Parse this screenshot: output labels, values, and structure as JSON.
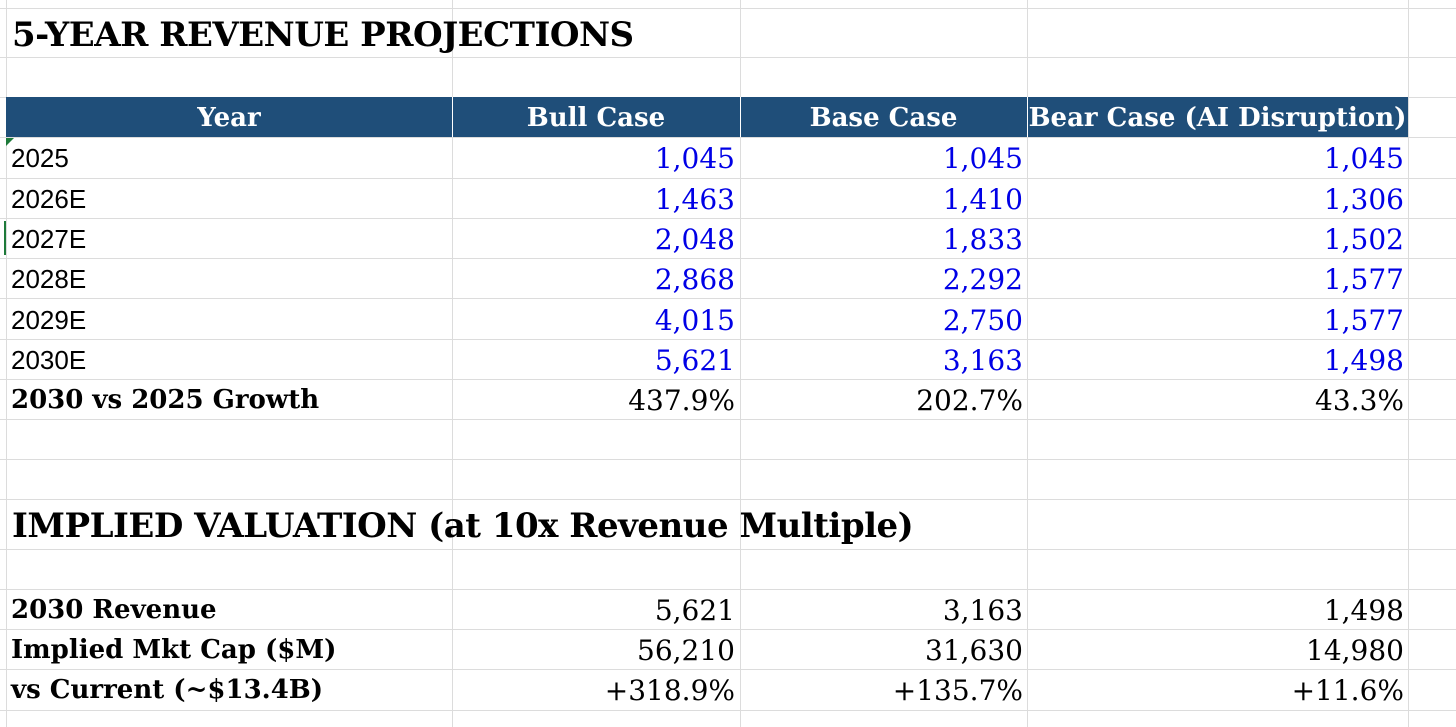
{
  "projections": {
    "title": "5-YEAR REVENUE PROJECTIONS",
    "headers": [
      "Year",
      "Bull Case",
      "Base Case",
      "Bear Case (AI Disruption)"
    ],
    "rows": [
      {
        "year": "2025",
        "bull": "1,045",
        "base": "1,045",
        "bear": "1,045"
      },
      {
        "year": "2026E",
        "bull": "1,463",
        "base": "1,410",
        "bear": "1,306"
      },
      {
        "year": "2027E",
        "bull": "2,048",
        "base": "1,833",
        "bear": "1,502"
      },
      {
        "year": "2028E",
        "bull": "2,868",
        "base": "2,292",
        "bear": "1,577"
      },
      {
        "year": "2029E",
        "bull": "4,015",
        "base": "2,750",
        "bear": "1,577"
      },
      {
        "year": "2030E",
        "bull": "5,621",
        "base": "3,163",
        "bear": "1,498"
      }
    ],
    "growth": {
      "label": "2030 vs 2025 Growth",
      "bull": "437.9%",
      "base": "202.7%",
      "bear": "43.3%"
    }
  },
  "valuation": {
    "title": "IMPLIED VALUATION (at 10x Revenue Multiple)",
    "rows": [
      {
        "label": "2030 Revenue",
        "bull": "5,621",
        "base": "3,163",
        "bear": "1,498"
      },
      {
        "label": "Implied Mkt Cap ($M)",
        "bull": "56,210",
        "base": "31,630",
        "bear": "14,980"
      },
      {
        "label": "vs Current (~$13.4B)",
        "bull": "+318.9%",
        "base": "+135.7%",
        "bear": "+11.6%"
      }
    ]
  },
  "colors": {
    "header_fill": "#1f4e79",
    "input_blue": "#0000e6",
    "gridline": "#dcdcdc"
  }
}
